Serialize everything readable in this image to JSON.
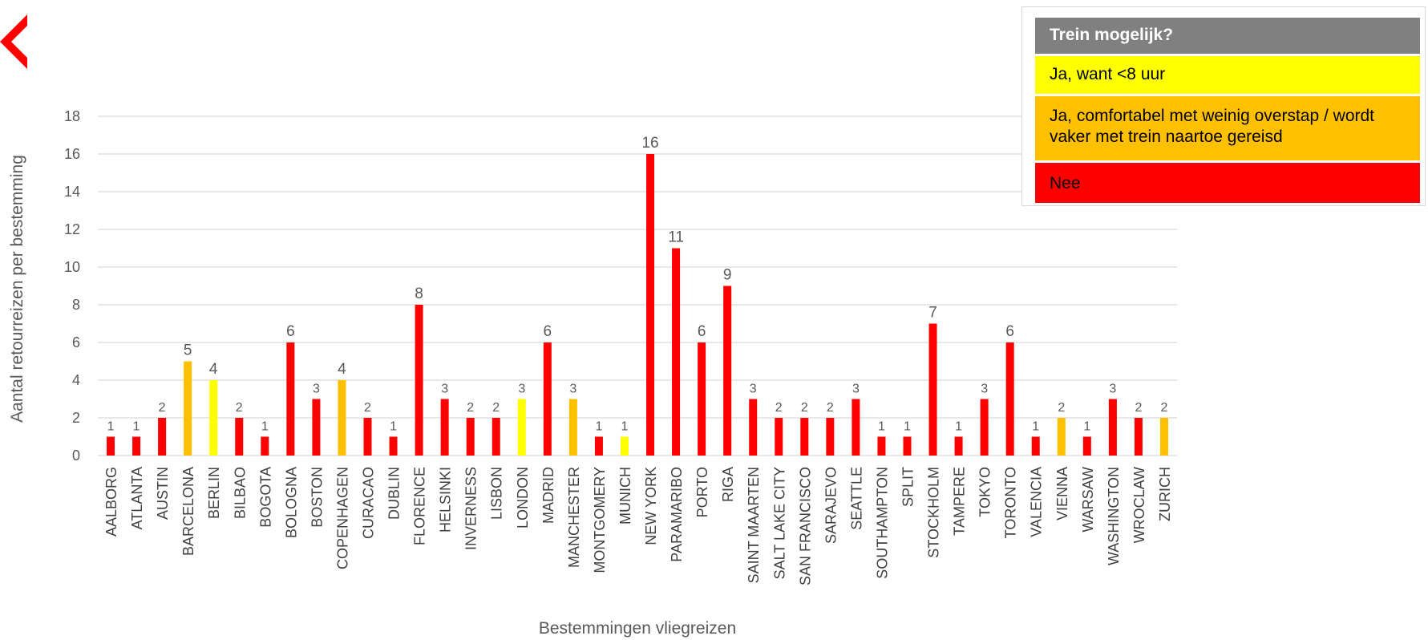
{
  "colors": {
    "red": "#ff0000",
    "yellow": "#ffff00",
    "orange": "#ffc000",
    "grid": "#d9d9d9",
    "text": "#595959",
    "logo": "#ff0000"
  },
  "legend": {
    "header": "Trein mogelijk?",
    "items": [
      {
        "label": "Ja, want <8 uur",
        "color": "yellow"
      },
      {
        "label": "Ja, comfortabel met weinig overstap / wordt vaker met trein naartoe gereisd",
        "color": "orange"
      },
      {
        "label": "Nee",
        "color": "red"
      }
    ]
  },
  "chart_data": {
    "type": "bar",
    "xlabel": "Bestemmingen vliegreizen",
    "ylabel": "Aantal retourreizen per bestemming",
    "ylim": [
      0,
      18
    ],
    "yticks": [
      0,
      2,
      4,
      6,
      8,
      10,
      12,
      14,
      16,
      18
    ],
    "grid": true,
    "legend_position": "top-right",
    "categories": [
      "AALBORG",
      "ATLANTA",
      "AUSTIN",
      "BARCELONA",
      "BERLIN",
      "BILBAO",
      "BOGOTA",
      "BOLOGNA",
      "BOSTON",
      "COPENHAGEN",
      "CURACAO",
      "DUBLIN",
      "FLORENCE",
      "HELSINKI",
      "INVERNESS",
      "LISBON",
      "LONDON",
      "MADRID",
      "MANCHESTER",
      "MONTGOMERY",
      "MUNICH",
      "NEW YORK",
      "PARAMARIBO",
      "PORTO",
      "RIGA",
      "SAINT MAARTEN",
      "SALT LAKE CITY",
      "SAN FRANCISCO",
      "SARAJEVO",
      "SEATTLE",
      "SOUTHAMPTON",
      "SPLIT",
      "STOCKHOLM",
      "TAMPERE",
      "TOKYO",
      "TORONTO",
      "VALENCIA",
      "VIENNA",
      "WARSAW",
      "WASHINGTON",
      "WROCLAW",
      "ZURICH"
    ],
    "values": [
      1,
      1,
      2,
      5,
      4,
      2,
      1,
      6,
      3,
      4,
      2,
      1,
      8,
      3,
      2,
      2,
      3,
      6,
      3,
      1,
      1,
      16,
      11,
      6,
      9,
      3,
      2,
      2,
      2,
      3,
      1,
      1,
      7,
      1,
      3,
      6,
      1,
      2,
      1,
      3,
      2,
      2
    ],
    "bar_colors": [
      "red",
      "red",
      "red",
      "orange",
      "yellow",
      "red",
      "red",
      "red",
      "red",
      "orange",
      "red",
      "red",
      "red",
      "red",
      "red",
      "red",
      "yellow",
      "red",
      "orange",
      "red",
      "yellow",
      "red",
      "red",
      "red",
      "red",
      "red",
      "red",
      "red",
      "red",
      "red",
      "red",
      "red",
      "red",
      "red",
      "red",
      "red",
      "red",
      "orange",
      "red",
      "red",
      "red",
      "orange"
    ]
  }
}
